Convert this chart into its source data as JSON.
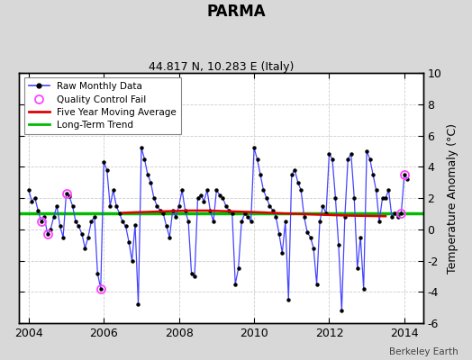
{
  "title": "PARMA",
  "subtitle": "44.817 N, 10.283 E (Italy)",
  "ylabel": "Temperature Anomaly (°C)",
  "credit": "Berkeley Earth",
  "ylim": [
    -6,
    10
  ],
  "xlim": [
    2003.75,
    2014.5
  ],
  "bg_color": "#d8d8d8",
  "plot_bg_color": "#ffffff",
  "long_term_trend_value": 1.0,
  "monthly_data": [
    [
      2004.0,
      2.5
    ],
    [
      2004.083,
      1.8
    ],
    [
      2004.167,
      2.0
    ],
    [
      2004.25,
      1.2
    ],
    [
      2004.333,
      0.5
    ],
    [
      2004.417,
      0.8
    ],
    [
      2004.5,
      -0.3
    ],
    [
      2004.583,
      0.0
    ],
    [
      2004.667,
      0.8
    ],
    [
      2004.75,
      1.5
    ],
    [
      2004.833,
      0.2
    ],
    [
      2004.917,
      -0.5
    ],
    [
      2005.0,
      2.3
    ],
    [
      2005.083,
      2.1
    ],
    [
      2005.167,
      1.5
    ],
    [
      2005.25,
      0.5
    ],
    [
      2005.333,
      0.2
    ],
    [
      2005.417,
      -0.3
    ],
    [
      2005.5,
      -1.2
    ],
    [
      2005.583,
      -0.5
    ],
    [
      2005.667,
      0.5
    ],
    [
      2005.75,
      0.8
    ],
    [
      2005.833,
      -2.8
    ],
    [
      2005.917,
      -3.8
    ],
    [
      2006.0,
      4.3
    ],
    [
      2006.083,
      3.8
    ],
    [
      2006.167,
      1.5
    ],
    [
      2006.25,
      2.5
    ],
    [
      2006.333,
      1.5
    ],
    [
      2006.417,
      1.0
    ],
    [
      2006.5,
      0.5
    ],
    [
      2006.583,
      0.2
    ],
    [
      2006.667,
      -0.8
    ],
    [
      2006.75,
      -2.0
    ],
    [
      2006.833,
      0.3
    ],
    [
      2006.917,
      -4.8
    ],
    [
      2007.0,
      5.2
    ],
    [
      2007.083,
      4.5
    ],
    [
      2007.167,
      3.5
    ],
    [
      2007.25,
      3.0
    ],
    [
      2007.333,
      2.0
    ],
    [
      2007.417,
      1.5
    ],
    [
      2007.5,
      1.2
    ],
    [
      2007.583,
      1.0
    ],
    [
      2007.667,
      0.2
    ],
    [
      2007.75,
      -0.5
    ],
    [
      2007.833,
      1.2
    ],
    [
      2007.917,
      0.8
    ],
    [
      2008.0,
      1.5
    ],
    [
      2008.083,
      2.5
    ],
    [
      2008.167,
      1.2
    ],
    [
      2008.25,
      0.5
    ],
    [
      2008.333,
      -2.8
    ],
    [
      2008.417,
      -3.0
    ],
    [
      2008.5,
      2.0
    ],
    [
      2008.583,
      2.2
    ],
    [
      2008.667,
      1.8
    ],
    [
      2008.75,
      2.5
    ],
    [
      2008.833,
      1.2
    ],
    [
      2008.917,
      0.5
    ],
    [
      2009.0,
      2.5
    ],
    [
      2009.083,
      2.2
    ],
    [
      2009.167,
      2.0
    ],
    [
      2009.25,
      1.5
    ],
    [
      2009.333,
      1.2
    ],
    [
      2009.417,
      1.0
    ],
    [
      2009.5,
      -3.5
    ],
    [
      2009.583,
      -2.5
    ],
    [
      2009.667,
      0.5
    ],
    [
      2009.75,
      1.0
    ],
    [
      2009.833,
      0.8
    ],
    [
      2009.917,
      0.5
    ],
    [
      2010.0,
      5.2
    ],
    [
      2010.083,
      4.5
    ],
    [
      2010.167,
      3.5
    ],
    [
      2010.25,
      2.5
    ],
    [
      2010.333,
      2.0
    ],
    [
      2010.417,
      1.5
    ],
    [
      2010.5,
      1.2
    ],
    [
      2010.583,
      0.8
    ],
    [
      2010.667,
      -0.3
    ],
    [
      2010.75,
      -1.5
    ],
    [
      2010.833,
      0.5
    ],
    [
      2010.917,
      -4.5
    ],
    [
      2011.0,
      3.5
    ],
    [
      2011.083,
      3.8
    ],
    [
      2011.167,
      3.0
    ],
    [
      2011.25,
      2.5
    ],
    [
      2011.333,
      0.8
    ],
    [
      2011.417,
      -0.2
    ],
    [
      2011.5,
      -0.5
    ],
    [
      2011.583,
      -1.2
    ],
    [
      2011.667,
      -3.5
    ],
    [
      2011.75,
      0.5
    ],
    [
      2011.833,
      1.5
    ],
    [
      2011.917,
      1.0
    ],
    [
      2012.0,
      4.8
    ],
    [
      2012.083,
      4.5
    ],
    [
      2012.167,
      2.0
    ],
    [
      2012.25,
      -1.0
    ],
    [
      2012.333,
      -5.2
    ],
    [
      2012.417,
      0.8
    ],
    [
      2012.5,
      4.5
    ],
    [
      2012.583,
      4.8
    ],
    [
      2012.667,
      2.0
    ],
    [
      2012.75,
      -2.5
    ],
    [
      2012.833,
      -0.5
    ],
    [
      2012.917,
      -3.8
    ],
    [
      2013.0,
      5.0
    ],
    [
      2013.083,
      4.5
    ],
    [
      2013.167,
      3.5
    ],
    [
      2013.25,
      2.5
    ],
    [
      2013.333,
      0.5
    ],
    [
      2013.417,
      2.0
    ],
    [
      2013.5,
      2.0
    ],
    [
      2013.583,
      2.5
    ],
    [
      2013.667,
      0.8
    ],
    [
      2013.75,
      1.0
    ],
    [
      2013.833,
      0.8
    ],
    [
      2013.917,
      1.0
    ],
    [
      2014.0,
      3.5
    ],
    [
      2014.083,
      3.2
    ]
  ],
  "qc_fail_points": [
    [
      2004.333,
      0.5
    ],
    [
      2004.5,
      -0.3
    ],
    [
      2005.0,
      2.3
    ],
    [
      2005.917,
      -3.8
    ],
    [
      2013.917,
      1.0
    ],
    [
      2014.0,
      3.5
    ]
  ],
  "moving_avg": [
    [
      2006.5,
      1.05
    ],
    [
      2006.75,
      1.08
    ],
    [
      2007.0,
      1.1
    ],
    [
      2007.25,
      1.12
    ],
    [
      2007.5,
      1.14
    ],
    [
      2007.75,
      1.16
    ],
    [
      2008.0,
      1.18
    ],
    [
      2008.25,
      1.2
    ],
    [
      2008.5,
      1.2
    ],
    [
      2008.75,
      1.2
    ],
    [
      2009.0,
      1.18
    ],
    [
      2009.25,
      1.16
    ],
    [
      2009.5,
      1.14
    ],
    [
      2009.75,
      1.12
    ],
    [
      2010.0,
      1.1
    ],
    [
      2010.25,
      1.08
    ],
    [
      2010.5,
      1.05
    ],
    [
      2010.75,
      1.02
    ],
    [
      2011.0,
      1.0
    ],
    [
      2011.25,
      0.98
    ],
    [
      2011.5,
      0.96
    ],
    [
      2011.75,
      0.94
    ],
    [
      2012.0,
      0.92
    ],
    [
      2012.25,
      0.9
    ],
    [
      2012.5,
      0.88
    ],
    [
      2012.75,
      0.87
    ],
    [
      2013.0,
      0.86
    ],
    [
      2013.25,
      0.85
    ],
    [
      2013.5,
      0.84
    ]
  ],
  "line_color": "#4444ff",
  "marker_color": "#000000",
  "qc_color": "#ff44ff",
  "moving_avg_color": "#dd0000",
  "trend_color": "#00bb00",
  "grid_color": "#cccccc",
  "xticks": [
    2004,
    2006,
    2008,
    2010,
    2012,
    2014
  ],
  "yticks": [
    -6,
    -4,
    -2,
    0,
    2,
    4,
    6,
    8,
    10
  ]
}
